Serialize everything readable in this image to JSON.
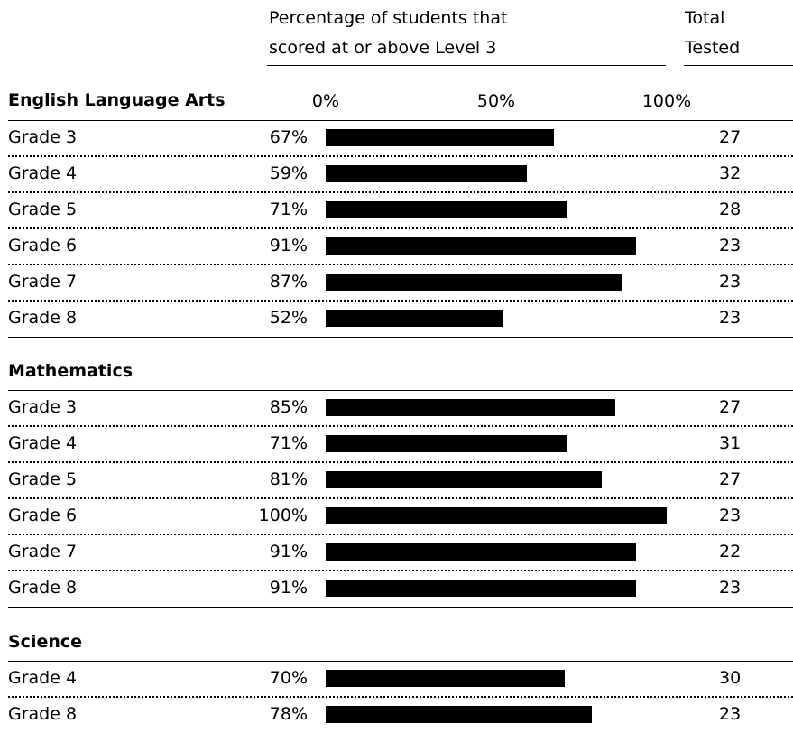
{
  "header": {
    "pct_line1": "Percentage of students that",
    "pct_line2": "scored at or above Level 3",
    "total_line1": "Total",
    "total_line2": "Tested"
  },
  "axis": {
    "ticks": [
      "0%",
      "50%",
      "100%"
    ]
  },
  "chart_data": {
    "type": "bar",
    "orientation": "horizontal",
    "xlim": [
      0,
      100
    ],
    "sections": [
      {
        "title": "English Language Arts",
        "rows": [
          {
            "label": "Grade 3",
            "pct_label": "67%",
            "value": 67,
            "total": "27"
          },
          {
            "label": "Grade 4",
            "pct_label": "59%",
            "value": 59,
            "total": "32"
          },
          {
            "label": "Grade 5",
            "pct_label": "71%",
            "value": 71,
            "total": "28"
          },
          {
            "label": "Grade 6",
            "pct_label": "91%",
            "value": 91,
            "total": "23"
          },
          {
            "label": "Grade 7",
            "pct_label": "87%",
            "value": 87,
            "total": "23"
          },
          {
            "label": "Grade 8",
            "pct_label": "52%",
            "value": 52,
            "total": "23"
          }
        ]
      },
      {
        "title": "Mathematics",
        "rows": [
          {
            "label": "Grade 3",
            "pct_label": "85%",
            "value": 85,
            "total": "27"
          },
          {
            "label": "Grade 4",
            "pct_label": "71%",
            "value": 71,
            "total": "31"
          },
          {
            "label": "Grade 5",
            "pct_label": "81%",
            "value": 81,
            "total": "27"
          },
          {
            "label": "Grade 6",
            "pct_label": "100%",
            "value": 100,
            "total": "23"
          },
          {
            "label": "Grade 7",
            "pct_label": "91%",
            "value": 91,
            "total": "22"
          },
          {
            "label": "Grade 8",
            "pct_label": "91%",
            "value": 91,
            "total": "23"
          }
        ]
      },
      {
        "title": "Science",
        "rows": [
          {
            "label": "Grade 4",
            "pct_label": "70%",
            "value": 70,
            "total": "30"
          },
          {
            "label": "Grade 8",
            "pct_label": "78%",
            "value": 78,
            "total": "23"
          }
        ]
      }
    ]
  }
}
